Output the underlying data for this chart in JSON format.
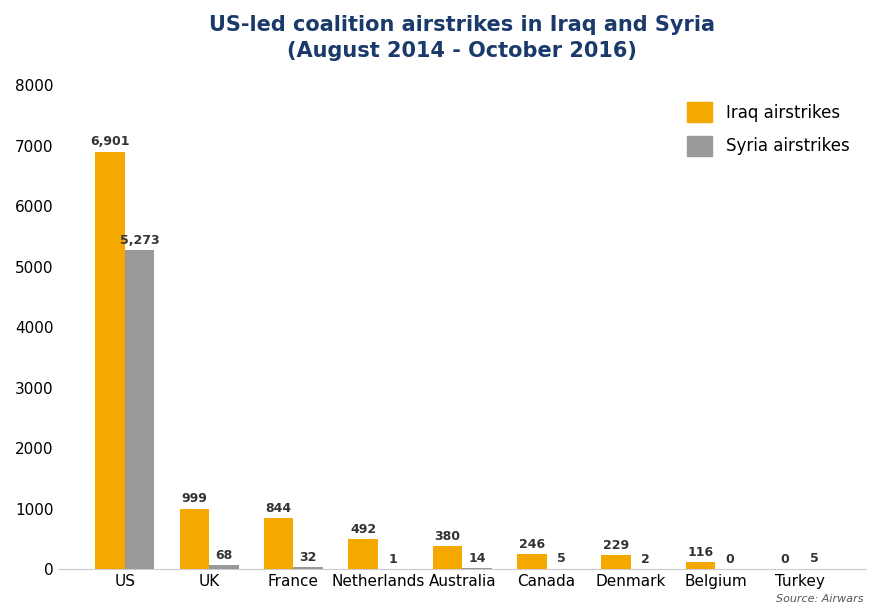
{
  "title_line1": "US-led coalition airstrikes in Iraq and Syria",
  "title_line2": "(August 2014 - October 2016)",
  "categories": [
    "US",
    "UK",
    "France",
    "Netherlands",
    "Australia",
    "Canada",
    "Denmark",
    "Belgium",
    "Turkey"
  ],
  "iraq_values": [
    6901,
    999,
    844,
    492,
    380,
    246,
    229,
    116,
    0
  ],
  "syria_values": [
    5273,
    68,
    32,
    1,
    14,
    5,
    2,
    0,
    5
  ],
  "iraq_color": "#F5A800",
  "syria_color": "#999999",
  "iraq_label": "Iraq airstrikes",
  "syria_label": "Syria airstrikes",
  "ylim": [
    0,
    8000
  ],
  "yticks": [
    0,
    1000,
    2000,
    3000,
    4000,
    5000,
    6000,
    7000,
    8000
  ],
  "source_text": "Source: Airwars",
  "bg_color": "#FFFFFF",
  "title_color": "#1a3a6b",
  "label_fontsize": 9,
  "title_fontsize": 15,
  "tick_fontsize": 11,
  "legend_fontsize": 12,
  "bar_width": 0.35
}
